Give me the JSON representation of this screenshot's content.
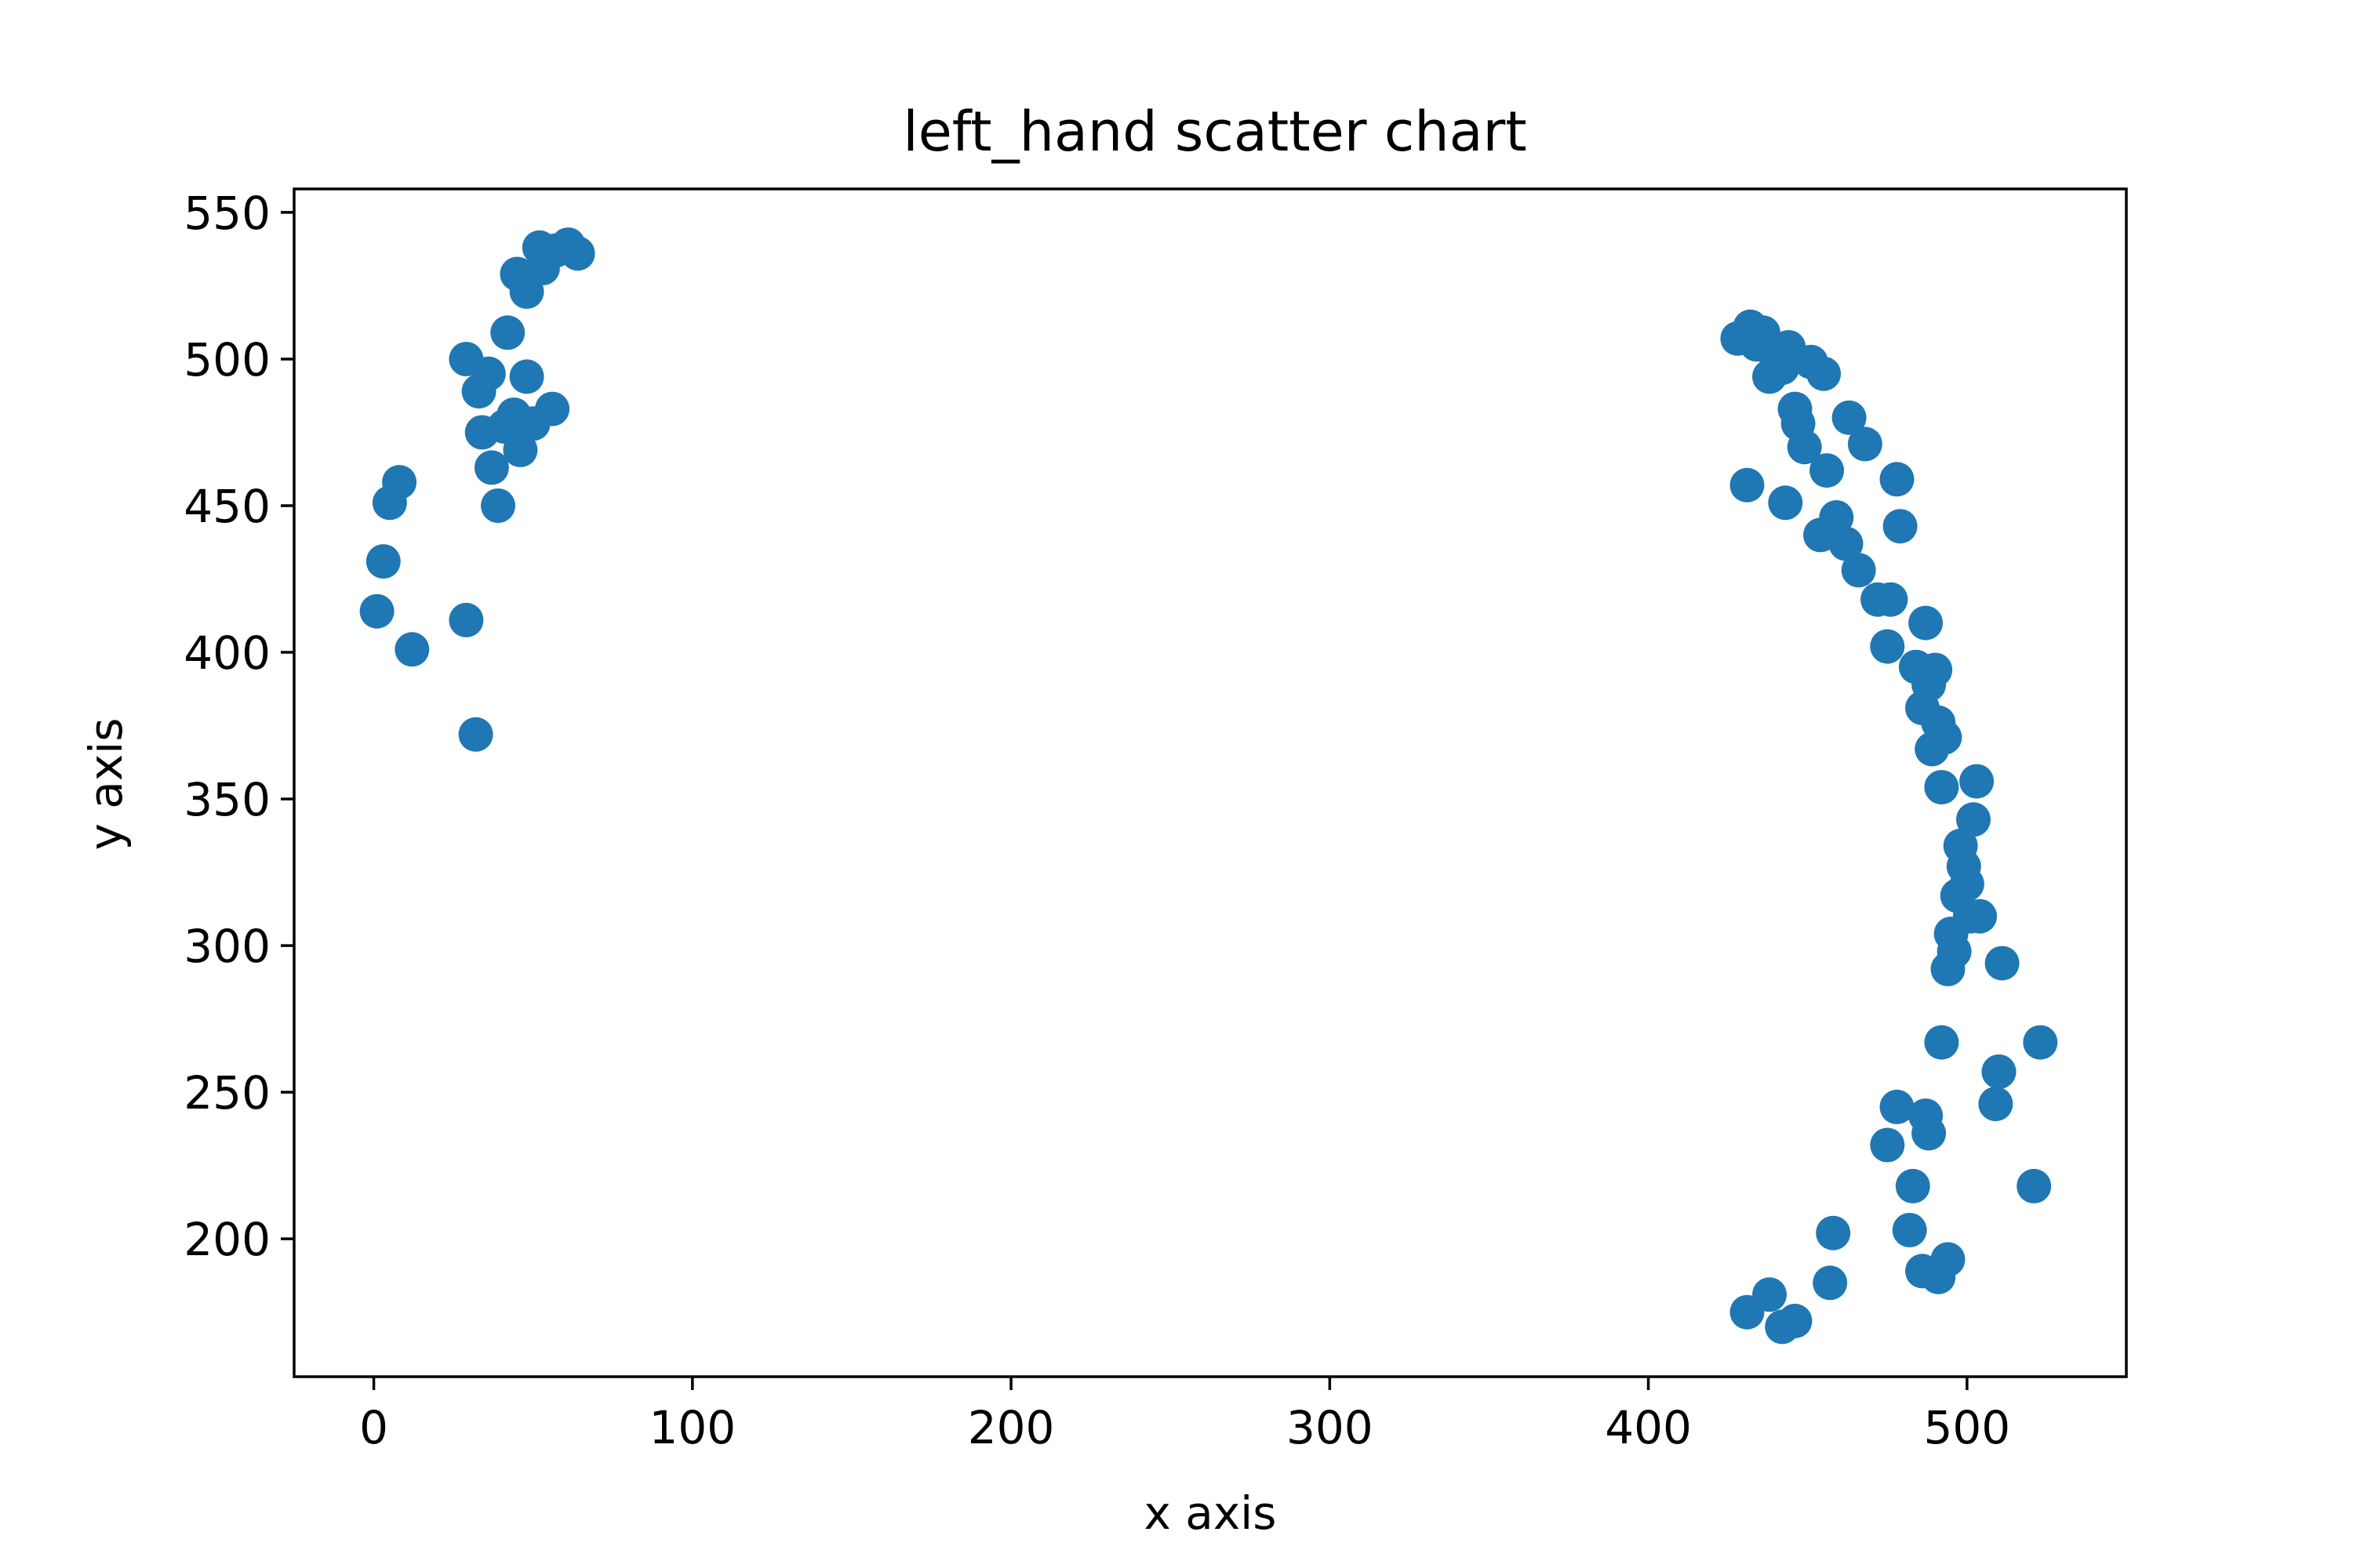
{
  "chart_data": {
    "type": "scatter",
    "title": "left_hand scatter chart",
    "xlabel": "x axis",
    "ylabel": "y axis",
    "xlim": [
      -25,
      550
    ],
    "ylim": [
      153,
      558
    ],
    "xticks": [
      0,
      100,
      200,
      300,
      400,
      500
    ],
    "yticks": [
      200,
      250,
      300,
      350,
      400,
      450,
      500,
      550
    ],
    "grid": false,
    "legend": "none",
    "marker_color": "#1f77b4",
    "series": [
      {
        "x": [
          1,
          3,
          5,
          8,
          12,
          29,
          29,
          32,
          33,
          34,
          36,
          37,
          39,
          41,
          42,
          44,
          45,
          46,
          48,
          48,
          50,
          52,
          53,
          56,
          57,
          61,
          64,
          428,
          432,
          434,
          436,
          438,
          440,
          442,
          444,
          446,
          447,
          449,
          451,
          455,
          456,
          431,
          443,
          454,
          459,
          462,
          463,
          466,
          468,
          472,
          475,
          476,
          478,
          479,
          484,
          486,
          487,
          488,
          489,
          490,
          491,
          492,
          493,
          494,
          495,
          496,
          497,
          498,
          499,
          500,
          501,
          502,
          503,
          504,
          510,
          511,
          492,
          509,
          510,
          523,
          521,
          478,
          475,
          487,
          488,
          483,
          482,
          458,
          457,
          486,
          491,
          494,
          431,
          438,
          442,
          446
        ],
        "y": [
          414,
          431,
          451,
          458,
          401,
          500,
          411,
          372,
          489,
          475,
          495,
          463,
          450,
          477,
          509,
          481,
          529,
          469,
          523,
          494,
          478,
          538,
          531,
          483,
          537,
          539,
          536,
          507,
          511,
          505,
          509,
          494,
          501,
          497,
          504,
          483,
          478,
          470,
          499,
          495,
          462,
          457,
          451,
          440,
          446,
          437,
          480,
          428,
          471,
          418,
          402,
          418,
          459,
          443,
          395,
          381,
          410,
          389,
          367,
          394,
          376,
          354,
          371,
          292,
          304,
          298,
          317,
          334,
          327,
          321,
          310,
          343,
          356,
          310,
          257,
          294,
          267,
          246,
          257,
          267,
          218,
          245,
          232,
          242,
          236,
          218,
          203,
          202,
          185,
          189,
          187,
          193,
          175,
          181,
          170,
          172
        ]
      }
    ]
  }
}
